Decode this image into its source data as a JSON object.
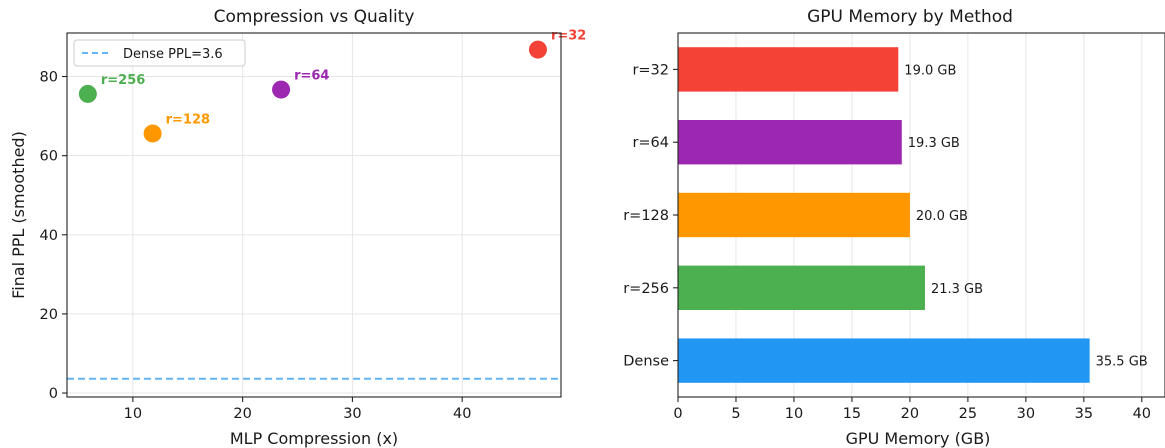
{
  "chart_data": [
    {
      "type": "scatter",
      "title": "Compression vs Quality",
      "xlabel": "MLP Compression (x)",
      "ylabel": "Final PPL (smoothed)",
      "xlim": [
        4,
        49
      ],
      "ylim": [
        -1,
        91
      ],
      "xticks": [
        10,
        20,
        30,
        40
      ],
      "yticks": [
        0,
        20,
        40,
        60,
        80
      ],
      "grid": true,
      "legend_position": "top-left",
      "points": [
        {
          "label": "r=256",
          "x": 5.9,
          "y": 75.6,
          "color": "#4caf50"
        },
        {
          "label": "r=128",
          "x": 11.8,
          "y": 65.6,
          "color": "#ff9800"
        },
        {
          "label": "r=64",
          "x": 23.5,
          "y": 76.7,
          "color": "#9c27b0"
        },
        {
          "label": "r=32",
          "x": 46.9,
          "y": 86.8,
          "color": "#f44336"
        }
      ],
      "reference_line": {
        "label": "Dense PPL=3.6",
        "y": 3.6,
        "color": "#64b5f6",
        "style": "dashed"
      }
    },
    {
      "type": "bar",
      "orientation": "horizontal",
      "title": "GPU Memory by Method",
      "xlabel": "GPU Memory (GB)",
      "xlim": [
        0,
        42
      ],
      "xticks": [
        0,
        5,
        10,
        15,
        20,
        25,
        30,
        35,
        40
      ],
      "grid": true,
      "categories": [
        "r=32",
        "r=64",
        "r=128",
        "r=256",
        "Dense"
      ],
      "values": [
        19.0,
        19.3,
        20.0,
        21.3,
        35.5
      ],
      "value_labels": [
        "19.0 GB",
        "19.3 GB",
        "20.0 GB",
        "21.3 GB",
        "35.5 GB"
      ],
      "colors": [
        "#f44336",
        "#9c27b0",
        "#ff9800",
        "#4caf50",
        "#2196f3"
      ]
    }
  ]
}
